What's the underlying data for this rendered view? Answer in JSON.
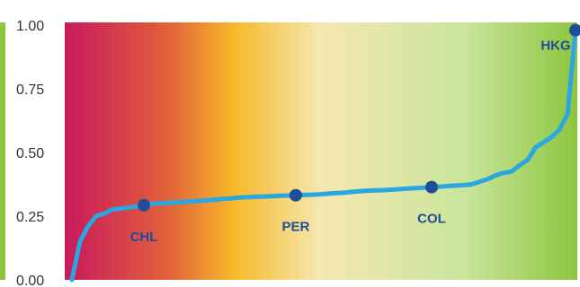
{
  "chart_data": {
    "type": "line",
    "title": "",
    "xlabel": "",
    "ylabel": "",
    "ylim": [
      0,
      1
    ],
    "yticks": [
      "0.00",
      "0.25",
      "0.50",
      "0.75",
      "1.00"
    ],
    "grid": false,
    "legend": "none",
    "background_gradient": [
      "#c9195c",
      "#e0603a",
      "#f7b92a",
      "#f5e8b0",
      "#c9e59c",
      "#8dc63f"
    ],
    "line_color": "#2aa7e0",
    "marker_color": "#1f4e96",
    "left_accent_color": "#8dc63f",
    "series": [
      {
        "values": [
          0.0,
          0.15,
          0.21,
          0.25,
          0.26,
          0.275,
          0.28,
          0.283,
          0.288,
          0.293,
          0.298,
          0.3,
          0.302,
          0.304,
          0.306,
          0.308,
          0.31,
          0.312,
          0.315,
          0.318,
          0.32,
          0.323,
          0.325,
          0.326,
          0.327,
          0.328,
          0.33,
          0.331,
          0.332,
          0.333,
          0.334,
          0.336,
          0.338,
          0.34,
          0.342,
          0.345,
          0.348,
          0.35,
          0.351,
          0.352,
          0.354,
          0.356,
          0.358,
          0.36,
          0.362,
          0.364,
          0.366,
          0.368,
          0.37,
          0.372,
          0.375,
          0.385,
          0.395,
          0.41,
          0.42,
          0.425,
          0.45,
          0.47,
          0.52,
          0.54,
          0.56,
          0.59,
          0.65,
          0.98
        ]
      }
    ],
    "annotations": [
      {
        "label": "CHL",
        "index": 9
      },
      {
        "label": "PER",
        "index": 28
      },
      {
        "label": "COL",
        "index": 45
      },
      {
        "label": "HKG",
        "index": 63
      }
    ]
  }
}
